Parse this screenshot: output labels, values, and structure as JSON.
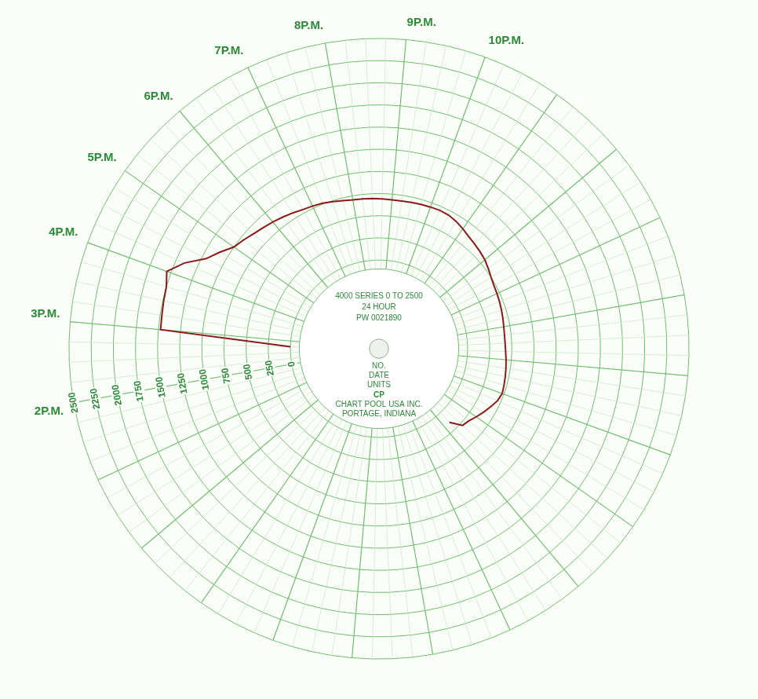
{
  "chart_data": {
    "type": "radar",
    "categories": [
      "2P.M.",
      null,
      null,
      null,
      "3P.M.",
      null,
      null,
      null,
      "4P.M.",
      null,
      null,
      null,
      "5P.M.",
      null,
      null,
      null,
      "6P.M.",
      null,
      null,
      null,
      "7P.M.",
      null,
      null,
      null,
      "8P.M.",
      null,
      null,
      null,
      "9P.M.",
      null,
      null,
      null,
      "10P.M.",
      null,
      null,
      null,
      null,
      null,
      null,
      null,
      null,
      null,
      null,
      null,
      null,
      null,
      null,
      null,
      null,
      null,
      null,
      null,
      null,
      null,
      null,
      null,
      null,
      null,
      null,
      null,
      null,
      null,
      null,
      null,
      null,
      null,
      null,
      null,
      null,
      null,
      null,
      null,
      null,
      null,
      null,
      null,
      null,
      null,
      null,
      null,
      null,
      null,
      null,
      null,
      null,
      null,
      null,
      null,
      null,
      null,
      null,
      null,
      null,
      null,
      null,
      null
    ],
    "values": [
      null,
      null,
      null,
      0,
      1475,
      1480,
      1490,
      1500,
      1550,
      1400,
      1200,
      1100,
      1000,
      960,
      920,
      890,
      865,
      840,
      815,
      790,
      775,
      760,
      740,
      720,
      705,
      700,
      695,
      690,
      685,
      685,
      690,
      695,
      700,
      705,
      700,
      680,
      650,
      620,
      600,
      580,
      560,
      530,
      500,
      480,
      470,
      460,
      450,
      440,
      430,
      425,
      425,
      430,
      440,
      450,
      460,
      470,
      480,
      460,
      420,
      380,
      340,
      300,
      280,
      150,
      null,
      null,
      null,
      null,
      null,
      null,
      null,
      null,
      null,
      null,
      null,
      null,
      null,
      null,
      null,
      null,
      null,
      null,
      null,
      null,
      null,
      null,
      null,
      null,
      null,
      null,
      null,
      null,
      null,
      null,
      null,
      null
    ],
    "color": "#8b1a1a",
    "ylim": [
      -1000,
      2500
    ],
    "yticks": [
      0,
      250,
      500,
      750,
      1000,
      1250,
      1500,
      1750,
      2000,
      2250,
      2500
    ],
    "grid": true,
    "annotations": [
      "4000 SERIES 0 TO 2500",
      "24 HOUR",
      "PW 0021890",
      "NO.",
      "DATE",
      "UNITS",
      "CP",
      "CHART POOL USA INC.",
      "PORTAGE, INDIANA"
    ]
  }
}
